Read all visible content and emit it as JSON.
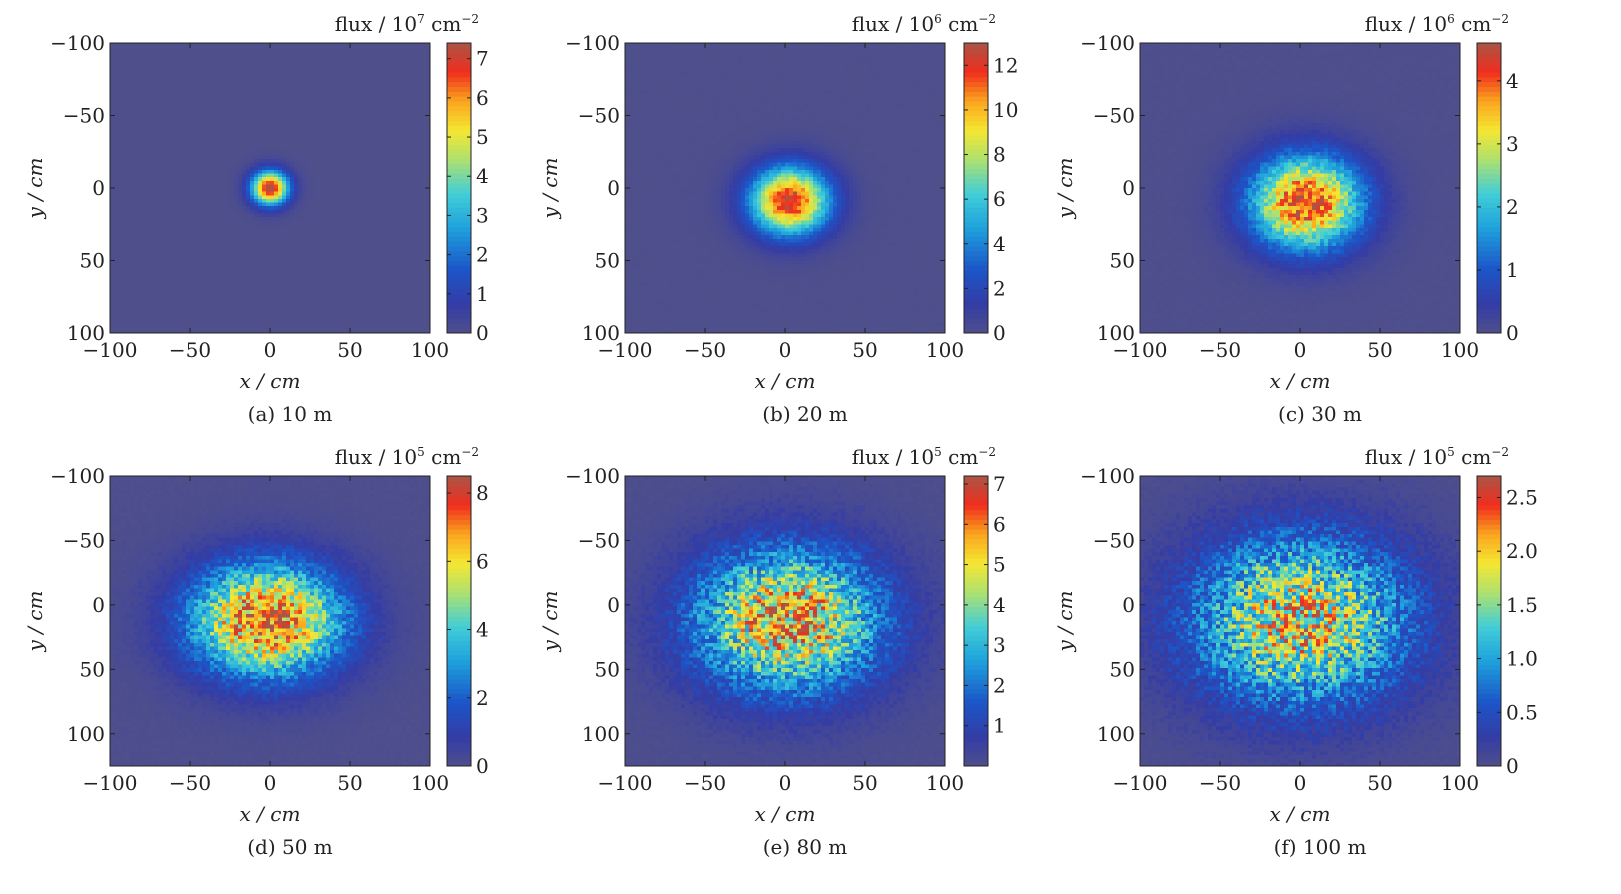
{
  "chart_data": [
    {
      "type": "heatmap",
      "caption": "(a) 10 m",
      "xlabel": "x / cm",
      "ylabel": "y / cm",
      "xlim": [
        -100,
        100
      ],
      "ylim": [
        -100,
        100
      ],
      "x_ticks": [
        -100,
        -50,
        0,
        50,
        100
      ],
      "x_tick_labels": [
        "−100",
        "−50",
        "0",
        "50",
        "100"
      ],
      "y_ticks": [
        -100,
        -50,
        0,
        50,
        100
      ],
      "y_tick_labels": [
        "−100",
        "−50",
        "0",
        "50",
        "100"
      ],
      "colorbar": {
        "label_prefix": "flux / 10",
        "exponent": "7",
        "label_unit": " cm",
        "unit_power": "−2",
        "min": 0,
        "max": 7.4,
        "ticks": [
          0,
          1,
          2,
          3,
          4,
          5,
          6,
          7
        ],
        "tick_labels": [
          "0",
          "1",
          "2",
          "3",
          "4",
          "5",
          "6",
          "7"
        ]
      },
      "peak": 7.4,
      "center": [
        0,
        0
      ],
      "sigma_x": 8,
      "sigma_y": 8,
      "noise": 0.02
    },
    {
      "type": "heatmap",
      "caption": "(b) 20 m",
      "xlabel": "x / cm",
      "ylabel": "y / cm",
      "xlim": [
        -100,
        100
      ],
      "ylim": [
        -100,
        100
      ],
      "x_ticks": [
        -100,
        -50,
        0,
        50,
        100
      ],
      "x_tick_labels": [
        "−100",
        "−50",
        "0",
        "50",
        "100"
      ],
      "y_ticks": [
        -100,
        -50,
        0,
        50,
        100
      ],
      "y_tick_labels": [
        "−100",
        "−50",
        "0",
        "50",
        "100"
      ],
      "colorbar": {
        "label_prefix": "flux / 10",
        "exponent": "6",
        "label_unit": " cm",
        "unit_power": "−2",
        "min": 0,
        "max": 13,
        "ticks": [
          0,
          2,
          4,
          6,
          8,
          10,
          12
        ],
        "tick_labels": [
          "0",
          "2",
          "4",
          "6",
          "8",
          "10",
          "12"
        ]
      },
      "peak": 12.5,
      "center": [
        3,
        9
      ],
      "sigma_x": 17,
      "sigma_y": 16,
      "noise": 0.06
    },
    {
      "type": "heatmap",
      "caption": "(c) 30 m",
      "xlabel": "x / cm",
      "ylabel": "y / cm",
      "xlim": [
        -100,
        100
      ],
      "ylim": [
        -100,
        100
      ],
      "x_ticks": [
        -100,
        -50,
        0,
        50,
        100
      ],
      "x_tick_labels": [
        "−100",
        "−50",
        "0",
        "50",
        "100"
      ],
      "y_ticks": [
        -100,
        -50,
        0,
        50,
        100
      ],
      "y_tick_labels": [
        "−100",
        "−50",
        "0",
        "50",
        "100"
      ],
      "colorbar": {
        "label_prefix": "flux / 10",
        "exponent": "6",
        "label_unit": " cm",
        "unit_power": "−2",
        "min": 0,
        "max": 4.6,
        "ticks": [
          0,
          1,
          2,
          3,
          4
        ],
        "tick_labels": [
          "0",
          "1",
          "2",
          "3",
          "4"
        ]
      },
      "peak": 4.3,
      "center": [
        4,
        10
      ],
      "sigma_x": 24,
      "sigma_y": 22,
      "noise": 0.12
    },
    {
      "type": "heatmap",
      "caption": "(d) 50 m",
      "xlabel": "x / cm",
      "ylabel": "y / cm",
      "xlim": [
        -100,
        100
      ],
      "ylim": [
        -100,
        125
      ],
      "x_ticks": [
        -100,
        -50,
        0,
        50,
        100
      ],
      "x_tick_labels": [
        "−100",
        "−50",
        "0",
        "50",
        "100"
      ],
      "y_ticks": [
        -100,
        -50,
        0,
        50,
        100
      ],
      "y_tick_labels": [
        "−100",
        "−50",
        "0",
        "50",
        "100"
      ],
      "colorbar": {
        "label_prefix": "flux / 10",
        "exponent": "5",
        "label_unit": " cm",
        "unit_power": "−2",
        "min": 0,
        "max": 8.5,
        "ticks": [
          0,
          2,
          4,
          6,
          8
        ],
        "tick_labels": [
          "0",
          "2",
          "4",
          "6",
          "8"
        ]
      },
      "peak": 7.6,
      "center": [
        -2,
        12
      ],
      "sigma_x": 33,
      "sigma_y": 30,
      "noise": 0.2
    },
    {
      "type": "heatmap",
      "caption": "(e) 80 m",
      "xlabel": "x / cm",
      "ylabel": "y / cm",
      "xlim": [
        -100,
        100
      ],
      "ylim": [
        -100,
        125
      ],
      "x_ticks": [
        -100,
        -50,
        0,
        50,
        100
      ],
      "x_tick_labels": [
        "−100",
        "−50",
        "0",
        "50",
        "100"
      ],
      "y_ticks": [
        -100,
        -50,
        0,
        50,
        100
      ],
      "y_tick_labels": [
        "−100",
        "−50",
        "0",
        "50",
        "100"
      ],
      "colorbar": {
        "label_prefix": "flux / 10",
        "exponent": "5",
        "label_unit": " cm",
        "unit_power": "−2",
        "min": 0,
        "max": 7.2,
        "ticks": [
          1,
          2,
          3,
          4,
          5,
          6,
          7
        ],
        "tick_labels": [
          "1",
          "2",
          "3",
          "4",
          "5",
          "6",
          "7"
        ]
      },
      "peak": 5.6,
      "center": [
        2,
        12
      ],
      "sigma_x": 40,
      "sigma_y": 38,
      "noise": 0.28
    },
    {
      "type": "heatmap",
      "caption": "(f) 100 m",
      "xlabel": "x / cm",
      "ylabel": "y / cm",
      "xlim": [
        -100,
        100
      ],
      "ylim": [
        -100,
        125
      ],
      "x_ticks": [
        -100,
        -50,
        0,
        50,
        100
      ],
      "x_tick_labels": [
        "−100",
        "−50",
        "0",
        "50",
        "100"
      ],
      "y_ticks": [
        -100,
        -50,
        0,
        50,
        100
      ],
      "y_tick_labels": [
        "−100",
        "−50",
        "0",
        "50",
        "100"
      ],
      "colorbar": {
        "label_prefix": "flux / 10",
        "exponent": "5",
        "label_unit": " cm",
        "unit_power": "−2",
        "min": 0,
        "max": 2.7,
        "ticks": [
          0,
          0.5,
          1.0,
          1.5,
          2.0,
          2.5
        ],
        "tick_labels": [
          "0",
          "0.5",
          "1.0",
          "1.5",
          "2.0",
          "2.5"
        ]
      },
      "peak": 1.9,
      "center": [
        0,
        12
      ],
      "sigma_x": 46,
      "sigma_y": 44,
      "noise": 0.32
    }
  ]
}
